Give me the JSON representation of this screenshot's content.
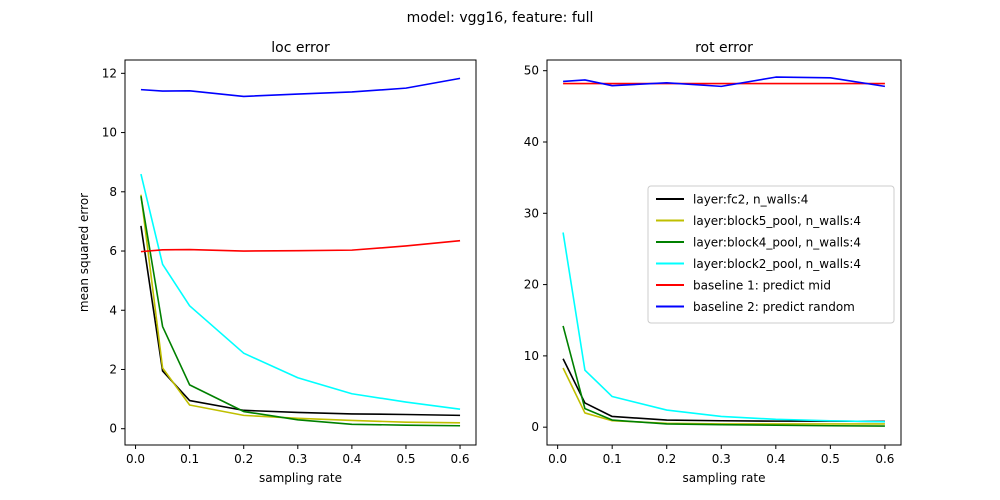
{
  "figure": {
    "suptitle": "model: vgg16, feature: full"
  },
  "chart_data": [
    {
      "type": "line",
      "title": "loc error",
      "xlabel": "sampling rate",
      "ylabel": "mean squared error",
      "xlim": [
        -0.0195,
        0.6295
      ],
      "ylim": [
        -0.55,
        12.45
      ],
      "xticks": [
        0.0,
        0.1,
        0.2,
        0.3,
        0.4,
        0.5,
        0.6
      ],
      "xtick_labels": [
        "0.0",
        "0.1",
        "0.2",
        "0.3",
        "0.4",
        "0.5",
        "0.6"
      ],
      "yticks": [
        0,
        2,
        4,
        6,
        8,
        10,
        12
      ],
      "ytick_labels": [
        "0",
        "2",
        "4",
        "6",
        "8",
        "10",
        "12"
      ],
      "x": [
        0.01,
        0.05,
        0.1,
        0.2,
        0.3,
        0.4,
        0.5,
        0.6
      ],
      "series": [
        {
          "name": "layer:fc2, n_walls:4",
          "color": "#000000",
          "values": [
            6.85,
            1.95,
            0.95,
            0.62,
            0.55,
            0.5,
            0.48,
            0.45
          ]
        },
        {
          "name": "layer:block5_pool, n_walls:4",
          "color": "#bfbf00",
          "values": [
            7.9,
            2.05,
            0.8,
            0.45,
            0.35,
            0.28,
            0.22,
            0.2
          ]
        },
        {
          "name": "layer:block4_pool, n_walls:4",
          "color": "#008000",
          "values": [
            7.85,
            3.45,
            1.48,
            0.58,
            0.3,
            0.15,
            0.12,
            0.1
          ]
        },
        {
          "name": "layer:block2_pool, n_walls:4",
          "color": "#00ffff",
          "values": [
            8.6,
            5.55,
            4.15,
            2.55,
            1.72,
            1.18,
            0.9,
            0.66
          ]
        },
        {
          "name": "baseline 1: predict mid",
          "color": "#ff0000",
          "values": [
            5.98,
            6.04,
            6.05,
            6.0,
            6.01,
            6.03,
            6.17,
            6.35
          ]
        },
        {
          "name": "baseline 2: predict random",
          "color": "#0000ff",
          "values": [
            11.45,
            11.4,
            11.41,
            11.22,
            11.3,
            11.37,
            11.5,
            11.83
          ]
        }
      ]
    },
    {
      "type": "line",
      "title": "rot error",
      "xlabel": "sampling rate",
      "ylabel": "",
      "xlim": [
        -0.0195,
        0.6295
      ],
      "ylim": [
        -2.5,
        51.5
      ],
      "xticks": [
        0.0,
        0.1,
        0.2,
        0.3,
        0.4,
        0.5,
        0.6
      ],
      "xtick_labels": [
        "0.0",
        "0.1",
        "0.2",
        "0.3",
        "0.4",
        "0.5",
        "0.6"
      ],
      "yticks": [
        0,
        10,
        20,
        30,
        40,
        50
      ],
      "ytick_labels": [
        "0",
        "10",
        "20",
        "30",
        "40",
        "50"
      ],
      "x": [
        0.01,
        0.05,
        0.1,
        0.2,
        0.3,
        0.4,
        0.5,
        0.6
      ],
      "legend": {
        "position": "center-right"
      },
      "series": [
        {
          "name": "layer:fc2, n_walls:4",
          "color": "#000000",
          "values": [
            9.6,
            3.4,
            1.5,
            1.0,
            0.9,
            0.85,
            0.85,
            0.8
          ]
        },
        {
          "name": "layer:block5_pool, n_walls:4",
          "color": "#bfbf00",
          "values": [
            8.3,
            2.0,
            0.9,
            0.55,
            0.45,
            0.45,
            0.45,
            0.45
          ]
        },
        {
          "name": "layer:block4_pool, n_walls:4",
          "color": "#008000",
          "values": [
            14.2,
            2.6,
            1.0,
            0.45,
            0.35,
            0.28,
            0.2,
            0.15
          ]
        },
        {
          "name": "layer:block2_pool, n_walls:4",
          "color": "#00ffff",
          "values": [
            27.3,
            8.0,
            4.3,
            2.4,
            1.5,
            1.1,
            0.9,
            0.75
          ]
        },
        {
          "name": "baseline 1: predict mid",
          "color": "#ff0000",
          "values": [
            48.2,
            48.2,
            48.2,
            48.2,
            48.2,
            48.2,
            48.2,
            48.2
          ]
        },
        {
          "name": "baseline 2: predict random",
          "color": "#0000ff",
          "values": [
            48.5,
            48.7,
            47.9,
            48.3,
            47.8,
            49.1,
            49.0,
            47.8
          ]
        }
      ]
    }
  ]
}
